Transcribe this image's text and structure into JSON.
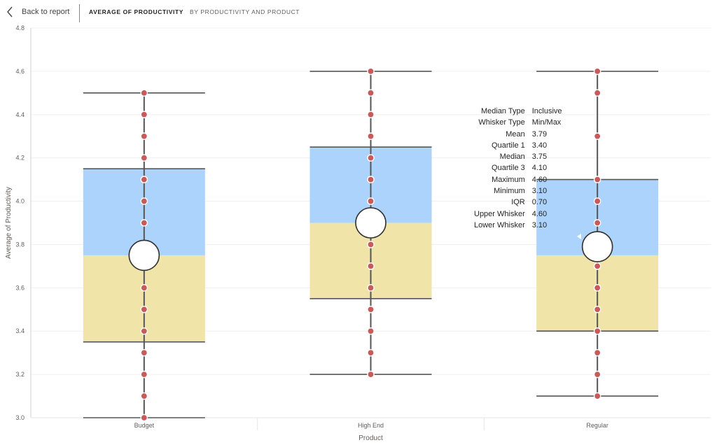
{
  "header": {
    "back_label": "Back to report",
    "title": "AVERAGE OF PRODUCTIVITY",
    "subtitle": "BY PRODUCTIVITY AND PRODUCT"
  },
  "icons": {
    "back": "chevron-left-icon"
  },
  "colors": {
    "upper_box": "#abd3fb",
    "lower_box": "#f0e4a8",
    "point": "#c85a5a",
    "whisker": "#555555",
    "mean_marker": "#ffffff"
  },
  "tooltip": [
    {
      "label": "Median Type",
      "value": "Inclusive"
    },
    {
      "label": "Whisker Type",
      "value": "Min/Max"
    },
    {
      "label": "Mean",
      "value": "3.79"
    },
    {
      "label": "Quartile 1",
      "value": "3.40"
    },
    {
      "label": "Median",
      "value": "3.75"
    },
    {
      "label": "Quartile 3",
      "value": "4.10"
    },
    {
      "label": "Maximum",
      "value": "4.60"
    },
    {
      "label": "Minimum",
      "value": "3.10"
    },
    {
      "label": "IQR",
      "value": "0.70"
    },
    {
      "label": "Upper Whisker",
      "value": "4.60"
    },
    {
      "label": "Lower Whisker",
      "value": "3.10"
    }
  ],
  "chart_data": {
    "type": "box",
    "title": "AVERAGE OF PRODUCTIVITY",
    "subtitle": "BY PRODUCTIVITY AND PRODUCT",
    "xlabel": "Product",
    "ylabel": "Average of Productivity",
    "ylim": [
      3.0,
      4.8
    ],
    "yticks": [
      3.0,
      3.2,
      3.4,
      3.6,
      3.8,
      4.0,
      4.2,
      4.4,
      4.6,
      4.8
    ],
    "grid": true,
    "categories": [
      "Budget",
      "High End",
      "Regular"
    ],
    "boxes": [
      {
        "category": "Budget",
        "min": 3.0,
        "q1": 3.35,
        "median": 3.75,
        "q3": 4.15,
        "max": 4.5,
        "mean": 3.75,
        "points": [
          3.0,
          3.1,
          3.2,
          3.3,
          3.4,
          3.5,
          3.6,
          3.9,
          4.0,
          4.1,
          4.2,
          4.3,
          4.4,
          4.5
        ]
      },
      {
        "category": "High End",
        "min": 3.2,
        "q1": 3.55,
        "median": 3.9,
        "q3": 4.25,
        "max": 4.6,
        "mean": 3.9,
        "points": [
          3.2,
          3.3,
          3.4,
          3.5,
          3.6,
          3.7,
          3.8,
          4.0,
          4.1,
          4.2,
          4.3,
          4.4,
          4.5,
          4.6
        ]
      },
      {
        "category": "Regular",
        "min": 3.1,
        "q1": 3.4,
        "median": 3.75,
        "q3": 4.1,
        "max": 4.6,
        "mean": 3.79,
        "points": [
          3.1,
          3.2,
          3.3,
          3.4,
          3.5,
          3.6,
          3.7,
          3.9,
          4.0,
          4.1,
          4.3,
          4.5,
          4.6
        ]
      }
    ]
  }
}
